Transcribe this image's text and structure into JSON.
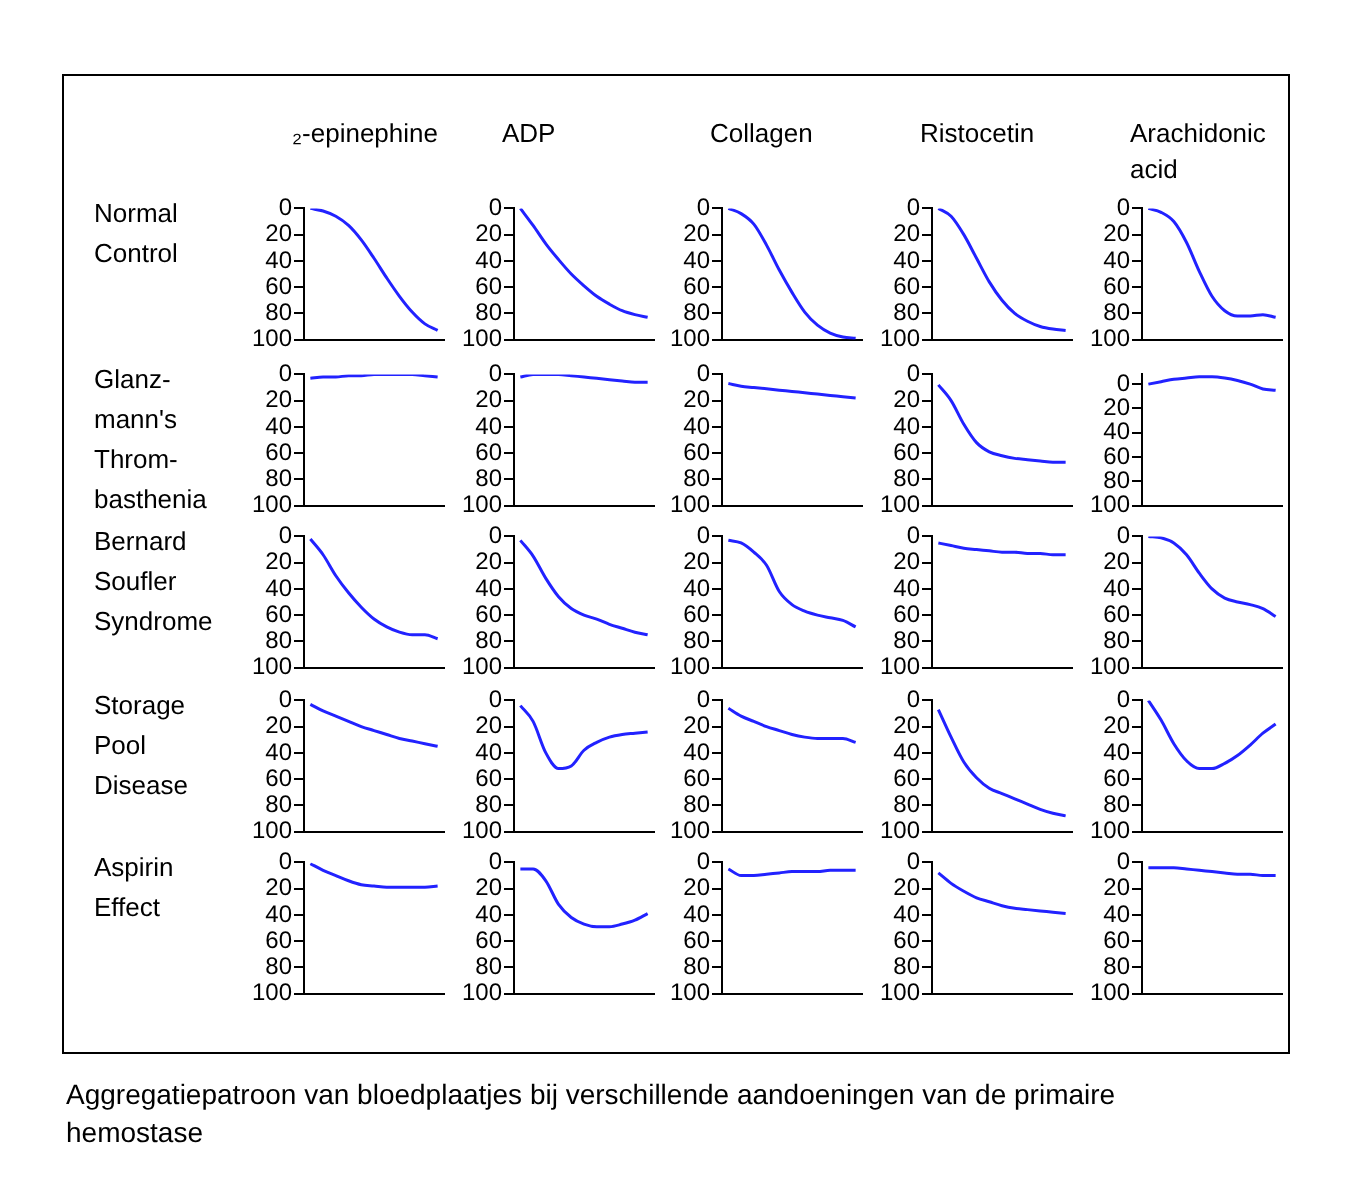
{
  "chart_data": [
    {
      "type": "line",
      "title": "₂-epinephine",
      "ylabel": "Normal\nControl",
      "categories": [
        null,
        null,
        null,
        null,
        null,
        null,
        null,
        null,
        null,
        null,
        null
      ],
      "series": [
        {
          "color": "#2222ff",
          "values": [
            0,
            2,
            6,
            13,
            24,
            38,
            53,
            67,
            79,
            88,
            93
          ]
        }
      ],
      "ylim": [
        100,
        0
      ],
      "yticks": [
        0,
        20,
        40,
        60,
        80,
        100
      ],
      "tick_labels": "y"
    },
    {
      "type": "line",
      "title": "ADP",
      "categories": [
        null,
        null,
        null,
        null,
        null,
        null,
        null,
        null,
        null,
        null,
        null
      ],
      "series": [
        {
          "color": "#2222ff",
          "values": [
            0,
            13,
            27,
            39,
            50,
            59,
            67,
            73,
            78,
            81,
            83
          ]
        }
      ],
      "ylim": [
        100,
        0
      ],
      "yticks": [
        0,
        20,
        40,
        60,
        80,
        100
      ],
      "tick_labels": "y"
    },
    {
      "type": "line",
      "title": "Collagen",
      "categories": [
        null,
        null,
        null,
        null,
        null,
        null,
        null,
        null,
        null,
        null,
        null
      ],
      "series": [
        {
          "color": "#2222ff",
          "values": [
            0,
            4,
            12,
            28,
            47,
            64,
            79,
            89,
            95,
            98,
            99
          ]
        }
      ],
      "ylim": [
        100,
        0
      ],
      "yticks": [
        0,
        20,
        40,
        60,
        80,
        100
      ],
      "tick_labels": "y"
    },
    {
      "type": "line",
      "title": "Ristocetin",
      "categories": [
        null,
        null,
        null,
        null,
        null,
        null,
        null,
        null,
        null,
        null,
        null
      ],
      "series": [
        {
          "color": "#2222ff",
          "values": [
            0,
            6,
            20,
            38,
            56,
            70,
            80,
            86,
            90,
            92,
            93
          ]
        }
      ],
      "ylim": [
        100,
        0
      ],
      "yticks": [
        0,
        20,
        40,
        60,
        80,
        100
      ],
      "tick_labels": "y"
    },
    {
      "type": "line",
      "title": "Arachidonic acid",
      "categories": [
        null,
        null,
        null,
        null,
        null,
        null,
        null,
        null,
        null,
        null,
        null
      ],
      "series": [
        {
          "color": "#2222ff",
          "values": [
            0,
            3,
            10,
            26,
            48,
            67,
            78,
            82,
            82,
            81,
            83
          ]
        }
      ],
      "ylim": [
        100,
        0
      ],
      "yticks": [
        0,
        20,
        40,
        60,
        80,
        100
      ],
      "tick_labels": "y"
    },
    {
      "type": "line",
      "ylabel": "Glanz-\nmann's\nThrom-\nbasthenia",
      "categories": [
        null,
        null,
        null,
        null,
        null,
        null,
        null,
        null,
        null,
        null,
        null
      ],
      "series": [
        {
          "color": "#2222ff",
          "values": [
            3,
            2,
            2,
            1,
            1,
            0,
            0,
            0,
            0,
            1,
            2
          ]
        }
      ],
      "ylim": [
        100,
        0
      ],
      "yticks": [
        0,
        20,
        40,
        60,
        80,
        100
      ],
      "tick_labels": "y"
    },
    {
      "type": "line",
      "categories": [
        null,
        null,
        null,
        null,
        null,
        null,
        null,
        null,
        null,
        null,
        null
      ],
      "series": [
        {
          "color": "#2222ff",
          "values": [
            2,
            0,
            0,
            0,
            1,
            2,
            3,
            4,
            5,
            6,
            6
          ]
        }
      ],
      "ylim": [
        100,
        0
      ],
      "yticks": [
        0,
        20,
        40,
        60,
        80,
        100
      ],
      "tick_labels": "y"
    },
    {
      "type": "line",
      "categories": [
        null,
        null,
        null,
        null,
        null,
        null,
        null,
        null,
        null,
        null,
        null
      ],
      "series": [
        {
          "color": "#2222ff",
          "values": [
            7,
            9,
            10,
            11,
            12,
            13,
            14,
            15,
            16,
            17,
            18
          ]
        }
      ],
      "ylim": [
        100,
        0
      ],
      "yticks": [
        0,
        20,
        40,
        60,
        80,
        100
      ],
      "tick_labels": "y"
    },
    {
      "type": "line",
      "categories": [
        null,
        null,
        null,
        null,
        null,
        null,
        null,
        null,
        null,
        null,
        null
      ],
      "series": [
        {
          "color": "#2222ff",
          "values": [
            8,
            20,
            38,
            52,
            59,
            62,
            64,
            65,
            66,
            67,
            67
          ]
        }
      ],
      "ylim": [
        100,
        0
      ],
      "yticks": [
        0,
        20,
        40,
        60,
        80,
        100
      ],
      "tick_labels": "y"
    },
    {
      "type": "line",
      "categories": [
        null,
        null,
        null,
        null,
        null,
        null,
        null,
        null,
        null,
        null,
        null
      ],
      "series": [
        {
          "color": "#2222ff",
          "values": [
            0,
            -2,
            -4,
            -5,
            -6,
            -6,
            -5,
            -3,
            0,
            4,
            5
          ]
        }
      ],
      "ylim": [
        100,
        -8
      ],
      "yticks": [
        0,
        20,
        40,
        60,
        80,
        100
      ],
      "tick_labels": "y"
    },
    {
      "type": "line",
      "ylabel": "Bernard\nSoufler\nSyndrome",
      "categories": [
        null,
        null,
        null,
        null,
        null,
        null,
        null,
        null,
        null,
        null,
        null
      ],
      "series": [
        {
          "color": "#2222ff",
          "values": [
            2,
            14,
            30,
            43,
            54,
            63,
            69,
            73,
            75,
            75,
            78
          ]
        }
      ],
      "ylim": [
        100,
        0
      ],
      "yticks": [
        0,
        20,
        40,
        60,
        80,
        100
      ],
      "tick_labels": "y"
    },
    {
      "type": "line",
      "categories": [
        null,
        null,
        null,
        null,
        null,
        null,
        null,
        null,
        null,
        null,
        null
      ],
      "series": [
        {
          "color": "#2222ff",
          "values": [
            3,
            15,
            32,
            46,
            55,
            60,
            63,
            67,
            70,
            73,
            75
          ]
        }
      ],
      "ylim": [
        100,
        0
      ],
      "yticks": [
        0,
        20,
        40,
        60,
        80,
        100
      ],
      "tick_labels": "y"
    },
    {
      "type": "line",
      "categories": [
        null,
        null,
        null,
        null,
        null,
        null,
        null,
        null,
        null,
        null,
        null
      ],
      "series": [
        {
          "color": "#2222ff",
          "values": [
            3,
            5,
            12,
            22,
            42,
            52,
            57,
            60,
            62,
            64,
            69
          ]
        }
      ],
      "ylim": [
        100,
        0
      ],
      "yticks": [
        0,
        20,
        40,
        60,
        80,
        100
      ],
      "tick_labels": "y"
    },
    {
      "type": "line",
      "categories": [
        null,
        null,
        null,
        null,
        null,
        null,
        null,
        null,
        null,
        null,
        null
      ],
      "series": [
        {
          "color": "#2222ff",
          "values": [
            5,
            7,
            9,
            10,
            11,
            12,
            12,
            13,
            13,
            14,
            14
          ]
        }
      ],
      "ylim": [
        100,
        0
      ],
      "yticks": [
        0,
        20,
        40,
        60,
        80,
        100
      ],
      "tick_labels": "y"
    },
    {
      "type": "line",
      "categories": [
        null,
        null,
        null,
        null,
        null,
        null,
        null,
        null,
        null,
        null,
        null
      ],
      "series": [
        {
          "color": "#2222ff",
          "values": [
            0,
            1,
            5,
            14,
            28,
            40,
            47,
            50,
            52,
            55,
            61
          ]
        }
      ],
      "ylim": [
        100,
        0
      ],
      "yticks": [
        0,
        20,
        40,
        60,
        80,
        100
      ],
      "tick_labels": "y"
    },
    {
      "type": "line",
      "ylabel": "Storage\nPool\nDisease",
      "categories": [
        null,
        null,
        null,
        null,
        null,
        null,
        null,
        null,
        null,
        null,
        null
      ],
      "series": [
        {
          "color": "#2222ff",
          "values": [
            3,
            8,
            12,
            16,
            20,
            23,
            26,
            29,
            31,
            33,
            35
          ]
        }
      ],
      "ylim": [
        100,
        0
      ],
      "yticks": [
        0,
        20,
        40,
        60,
        80,
        100
      ],
      "tick_labels": "y"
    },
    {
      "type": "line",
      "categories": [
        null,
        null,
        null,
        null,
        null,
        null,
        null,
        null,
        null,
        null,
        null
      ],
      "series": [
        {
          "color": "#2222ff",
          "values": [
            4,
            16,
            40,
            52,
            50,
            38,
            32,
            28,
            26,
            25,
            24
          ]
        }
      ],
      "ylim": [
        100,
        0
      ],
      "yticks": [
        0,
        20,
        40,
        60,
        80,
        100
      ],
      "tick_labels": "y"
    },
    {
      "type": "line",
      "categories": [
        null,
        null,
        null,
        null,
        null,
        null,
        null,
        null,
        null,
        null,
        null
      ],
      "series": [
        {
          "color": "#2222ff",
          "values": [
            6,
            12,
            16,
            20,
            23,
            26,
            28,
            29,
            29,
            29,
            32
          ]
        }
      ],
      "ylim": [
        100,
        0
      ],
      "yticks": [
        0,
        20,
        40,
        60,
        80,
        100
      ],
      "tick_labels": "y"
    },
    {
      "type": "line",
      "categories": [
        null,
        null,
        null,
        null,
        null,
        null,
        null,
        null,
        null,
        null,
        null
      ],
      "series": [
        {
          "color": "#2222ff",
          "values": [
            7,
            28,
            47,
            59,
            67,
            71,
            75,
            79,
            83,
            86,
            88
          ]
        }
      ],
      "ylim": [
        100,
        0
      ],
      "yticks": [
        0,
        20,
        40,
        60,
        80,
        100
      ],
      "tick_labels": "y"
    },
    {
      "type": "line",
      "categories": [
        null,
        null,
        null,
        null,
        null,
        null,
        null,
        null,
        null,
        null,
        null
      ],
      "series": [
        {
          "color": "#2222ff",
          "values": [
            0,
            15,
            33,
            46,
            52,
            52,
            48,
            42,
            34,
            25,
            18
          ]
        }
      ],
      "ylim": [
        100,
        0
      ],
      "yticks": [
        0,
        20,
        40,
        60,
        80,
        100
      ],
      "tick_labels": "y"
    },
    {
      "type": "line",
      "ylabel": "Aspirin\nEffect",
      "categories": [
        null,
        null,
        null,
        null,
        null,
        null,
        null,
        null,
        null,
        null,
        null
      ],
      "series": [
        {
          "color": "#2222ff",
          "values": [
            1,
            6,
            10,
            14,
            17,
            18,
            19,
            19,
            19,
            19,
            18
          ]
        }
      ],
      "ylim": [
        100,
        0
      ],
      "yticks": [
        0,
        20,
        40,
        60,
        80,
        100
      ],
      "tick_labels": "y"
    },
    {
      "type": "line",
      "categories": [
        null,
        null,
        null,
        null,
        null,
        null,
        null,
        null,
        null,
        null,
        null
      ],
      "series": [
        {
          "color": "#2222ff",
          "values": [
            5,
            5,
            14,
            32,
            42,
            47,
            49,
            49,
            47,
            44,
            39
          ]
        }
      ],
      "ylim": [
        100,
        0
      ],
      "yticks": [
        0,
        20,
        40,
        60,
        80,
        100
      ],
      "tick_labels": "y"
    },
    {
      "type": "line",
      "categories": [
        null,
        null,
        null,
        null,
        null,
        null,
        null,
        null,
        null,
        null,
        null
      ],
      "series": [
        {
          "color": "#2222ff",
          "values": [
            5,
            10,
            10,
            9,
            8,
            7,
            7,
            7,
            6,
            6,
            6
          ]
        }
      ],
      "ylim": [
        100,
        0
      ],
      "yticks": [
        0,
        20,
        40,
        60,
        80,
        100
      ],
      "tick_labels": "y"
    },
    {
      "type": "line",
      "categories": [
        null,
        null,
        null,
        null,
        null,
        null,
        null,
        null,
        null,
        null,
        null
      ],
      "series": [
        {
          "color": "#2222ff",
          "values": [
            8,
            16,
            22,
            27,
            30,
            33,
            35,
            36,
            37,
            38,
            39
          ]
        }
      ],
      "ylim": [
        100,
        0
      ],
      "yticks": [
        0,
        20,
        40,
        60,
        80,
        100
      ],
      "tick_labels": "y"
    },
    {
      "type": "line",
      "annotations": [
        "Aggregatiepatroon van bloedplaatjes bij verschillende aandoeningen van de primaire hemostase"
      ],
      "categories": [
        null,
        null,
        null,
        null,
        null,
        null,
        null,
        null,
        null,
        null,
        null
      ],
      "series": [
        {
          "color": "#2222ff",
          "values": [
            4,
            4,
            4,
            5,
            6,
            7,
            8,
            9,
            9,
            10,
            10
          ]
        }
      ],
      "ylim": [
        100,
        0
      ],
      "yticks": [
        0,
        20,
        40,
        60,
        80,
        100
      ],
      "tick_labels": "y"
    }
  ]
}
